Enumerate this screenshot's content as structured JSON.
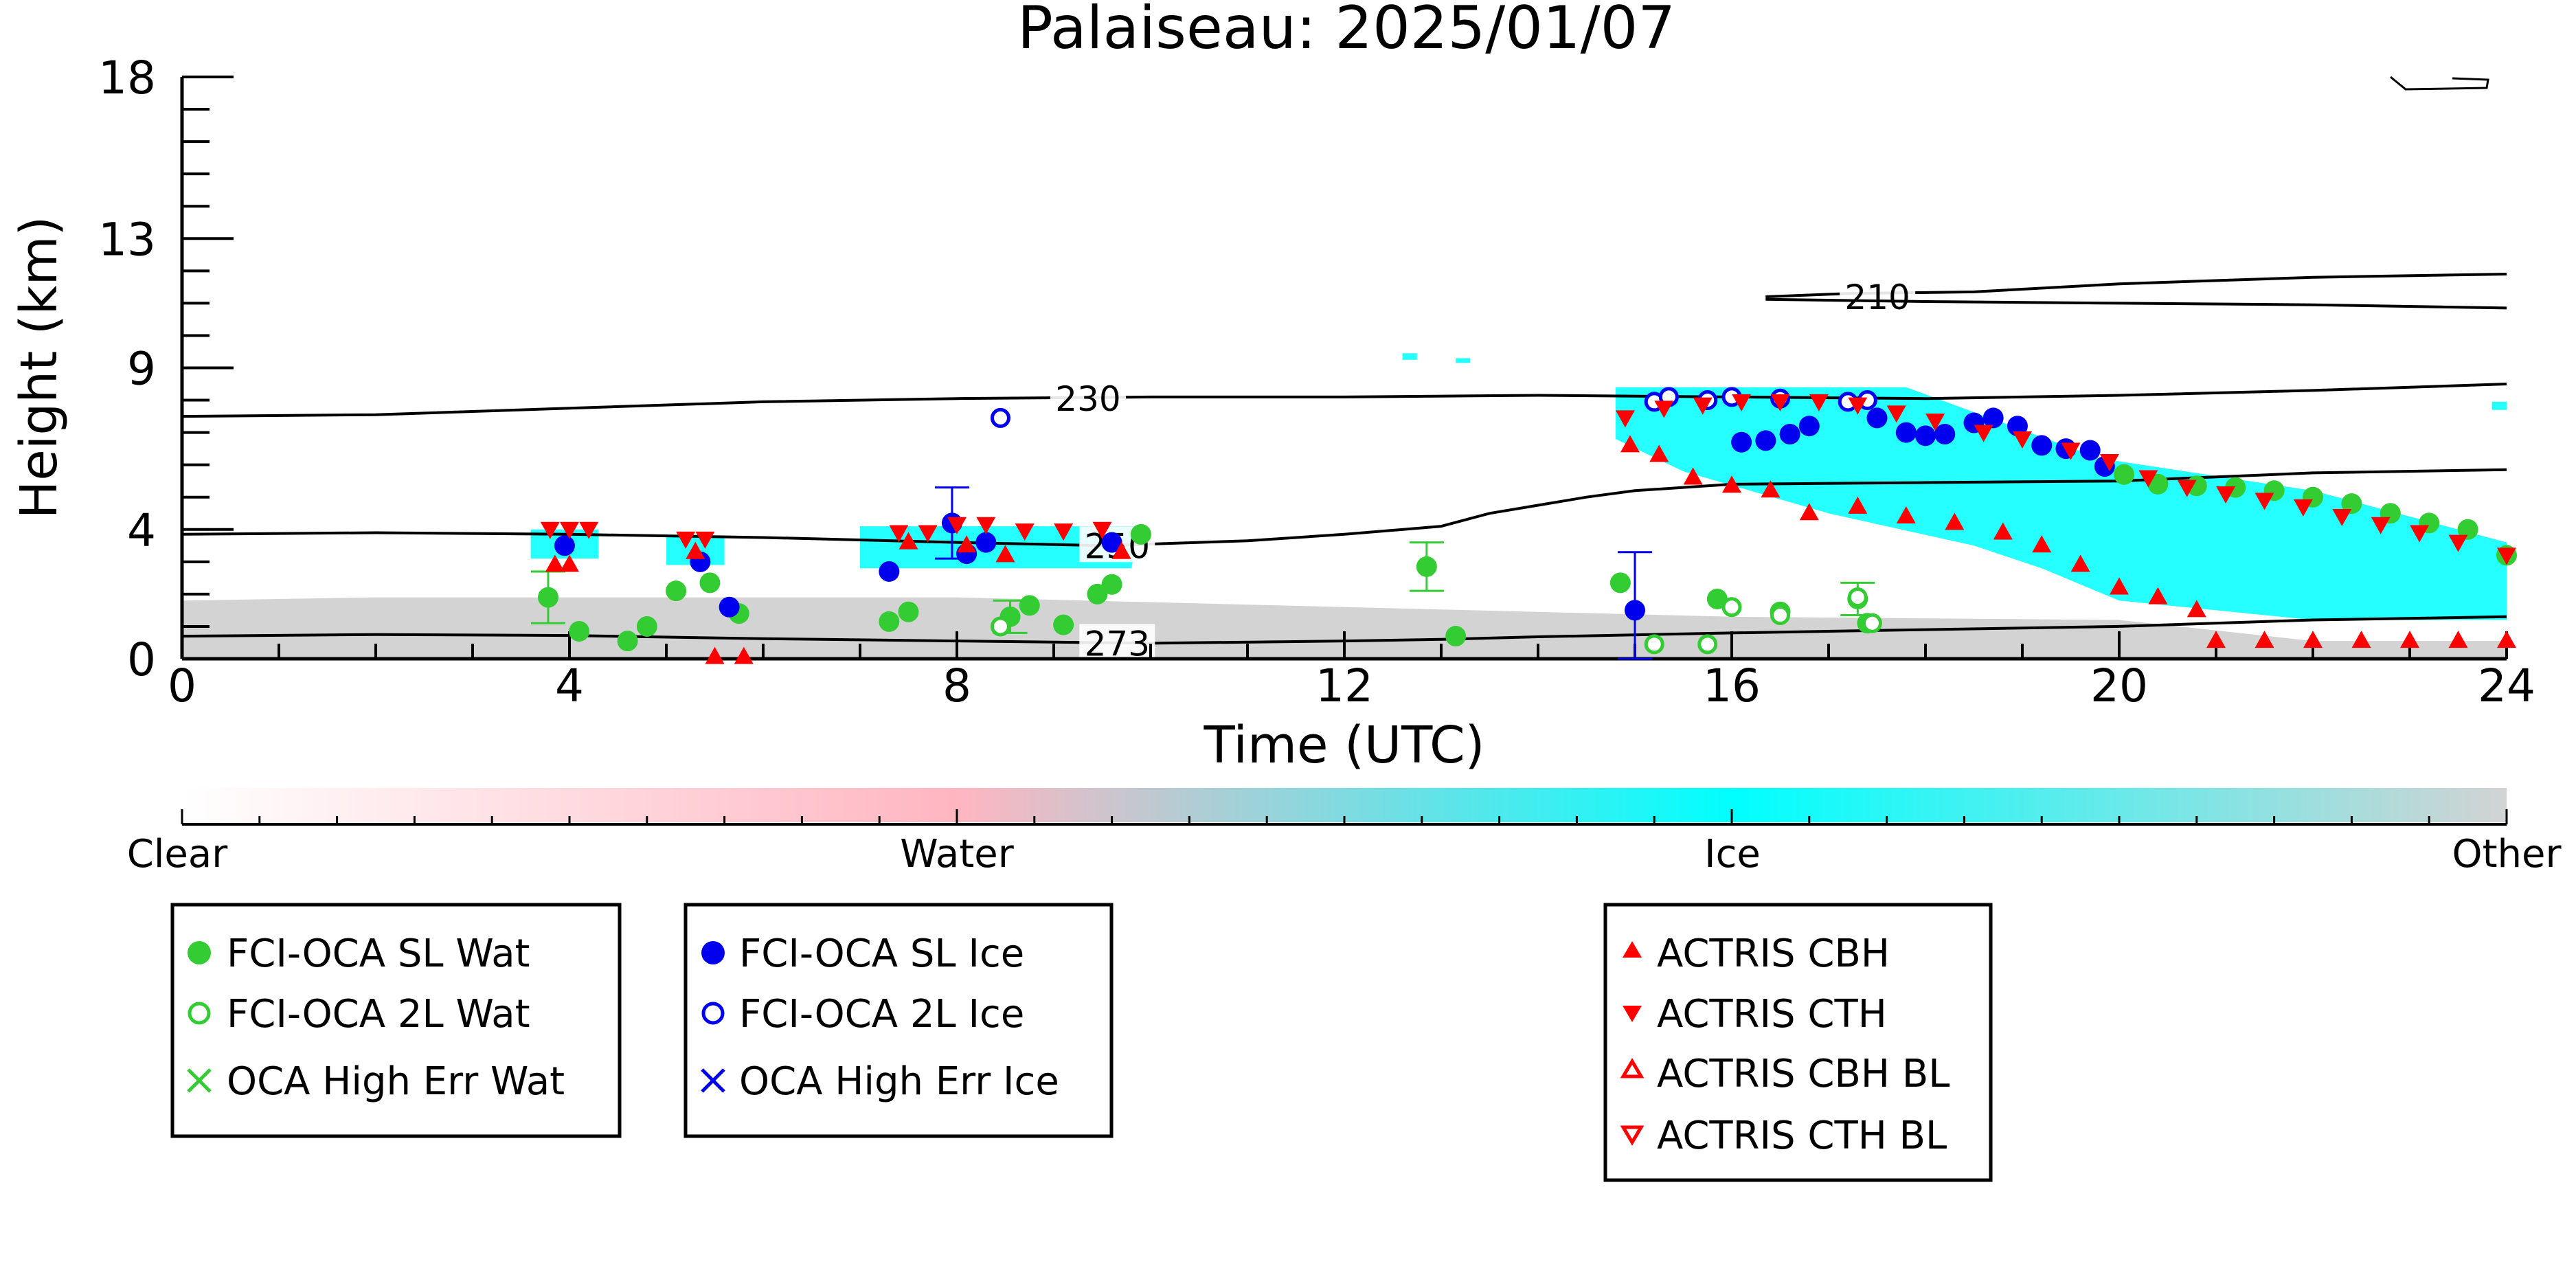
{
  "chart_data": {
    "type": "scatter",
    "title": "Palaiseau: 2025/01/07",
    "xlabel": "Time (UTC)",
    "ylabel": "Height (km)",
    "xlim": [
      0,
      24
    ],
    "ylim": [
      0,
      18
    ],
    "x_ticks": [
      0,
      4,
      8,
      12,
      16,
      20,
      24
    ],
    "y_ticks": [
      0,
      4,
      9,
      13,
      18
    ],
    "grid": false,
    "colorbar": {
      "labels": [
        "Clear",
        "Water",
        "Ice",
        "Other"
      ],
      "colors": [
        "#ffffff",
        "#ffb6c1",
        "#00ffff",
        "#d3d3d3"
      ]
    },
    "contours": [
      {
        "label": "210",
        "points": [
          [
            16.35,
            11.2
          ],
          [
            17.2,
            11.3
          ],
          [
            18.5,
            11.35
          ],
          [
            20.0,
            11.6
          ],
          [
            22.0,
            11.8
          ],
          [
            24.0,
            11.9
          ]
        ]
      },
      {
        "label": "",
        "points": [
          [
            16.35,
            11.12
          ],
          [
            18.0,
            11.05
          ],
          [
            20.0,
            11.0
          ],
          [
            22.0,
            10.95
          ],
          [
            24.0,
            10.85
          ]
        ]
      },
      {
        "label": "230",
        "points": [
          [
            0,
            7.5
          ],
          [
            2,
            7.55
          ],
          [
            4,
            7.75
          ],
          [
            6,
            7.95
          ],
          [
            8,
            8.05
          ],
          [
            10,
            8.1
          ],
          [
            12,
            8.1
          ],
          [
            14,
            8.15
          ],
          [
            16,
            8.1
          ],
          [
            18,
            8.05
          ],
          [
            20,
            8.15
          ],
          [
            22,
            8.3
          ],
          [
            24,
            8.5
          ]
        ]
      },
      {
        "label": "250",
        "points": [
          [
            0,
            3.85
          ],
          [
            2,
            3.9
          ],
          [
            4,
            3.85
          ],
          [
            6,
            3.75
          ],
          [
            8,
            3.6
          ],
          [
            9.5,
            3.5
          ],
          [
            10,
            3.55
          ],
          [
            11,
            3.65
          ],
          [
            12,
            3.85
          ],
          [
            13,
            4.1
          ],
          [
            13.5,
            4.5
          ],
          [
            14,
            4.75
          ],
          [
            14.5,
            5.0
          ],
          [
            15,
            5.2
          ],
          [
            16,
            5.4
          ],
          [
            18,
            5.45
          ],
          [
            20,
            5.5
          ],
          [
            22,
            5.75
          ],
          [
            24,
            5.85
          ]
        ]
      },
      {
        "label": "273",
        "points": [
          [
            0,
            0.7
          ],
          [
            2,
            0.75
          ],
          [
            4,
            0.72
          ],
          [
            6,
            0.62
          ],
          [
            8,
            0.55
          ],
          [
            10,
            0.48
          ],
          [
            12,
            0.55
          ],
          [
            13,
            0.6
          ],
          [
            14,
            0.68
          ],
          [
            16,
            0.8
          ],
          [
            18,
            0.9
          ],
          [
            20,
            1.0
          ],
          [
            22,
            1.2
          ],
          [
            24,
            1.3
          ]
        ]
      }
    ],
    "series": [
      {
        "name": "FCI-OCA SL Wat",
        "color": "#33cc33",
        "marker": "circle-filled",
        "points": [
          [
            3.78,
            1.9,
            0.8
          ],
          [
            4.1,
            0.85,
            0
          ],
          [
            4.6,
            0.55,
            0
          ],
          [
            4.8,
            1.0,
            0
          ],
          [
            5.1,
            2.1,
            0
          ],
          [
            5.45,
            2.35,
            0
          ],
          [
            5.75,
            1.4,
            0
          ],
          [
            7.3,
            1.15,
            0
          ],
          [
            7.5,
            1.45,
            0
          ],
          [
            8.55,
            1.3,
            0.5
          ],
          [
            8.75,
            1.65,
            0
          ],
          [
            9.1,
            1.05,
            0
          ],
          [
            9.45,
            2.0,
            0
          ],
          [
            9.6,
            2.3,
            0
          ],
          [
            9.9,
            3.85,
            0
          ],
          [
            12.85,
            2.85,
            0.75
          ],
          [
            13.15,
            0.7,
            0
          ],
          [
            14.85,
            2.35,
            0
          ],
          [
            15.85,
            1.85,
            0
          ],
          [
            16.5,
            1.45,
            0
          ],
          [
            17.3,
            1.85,
            0.5
          ],
          [
            17.4,
            1.1,
            0
          ],
          [
            20.05,
            5.7,
            0
          ],
          [
            20.4,
            5.4,
            0
          ],
          [
            20.8,
            5.35,
            0
          ],
          [
            21.2,
            5.3,
            0
          ],
          [
            21.6,
            5.2,
            0
          ],
          [
            22.0,
            5.0,
            0
          ],
          [
            22.4,
            4.8,
            0
          ],
          [
            22.8,
            4.5,
            0
          ],
          [
            23.2,
            4.2,
            0
          ],
          [
            23.6,
            4.0,
            0
          ],
          [
            24.0,
            3.2,
            0
          ]
        ]
      },
      {
        "name": "FCI-OCA 2L Wat",
        "color": "#33cc33",
        "marker": "circle-open",
        "points": [
          [
            8.45,
            1.0
          ],
          [
            15.2,
            0.45
          ],
          [
            15.75,
            0.45
          ],
          [
            16.0,
            1.6
          ],
          [
            16.5,
            1.35
          ],
          [
            17.3,
            1.9
          ],
          [
            17.45,
            1.1
          ]
        ]
      },
      {
        "name": "OCA High Err Wat",
        "color": "#33cc33",
        "marker": "x",
        "points": []
      },
      {
        "name": "FCI-OCA SL Ice",
        "color": "#0000ee",
        "marker": "circle-filled",
        "points": [
          [
            3.95,
            3.5,
            0
          ],
          [
            5.35,
            3.0,
            0
          ],
          [
            5.65,
            1.6,
            0
          ],
          [
            7.3,
            2.7,
            0
          ],
          [
            7.95,
            4.2,
            1.1
          ],
          [
            8.1,
            3.25,
            0
          ],
          [
            8.3,
            3.6,
            0
          ],
          [
            9.6,
            3.6,
            0
          ],
          [
            15.0,
            1.5,
            1.8
          ],
          [
            16.1,
            6.7,
            0
          ],
          [
            16.35,
            6.75,
            0
          ],
          [
            16.6,
            6.95,
            0
          ],
          [
            16.8,
            7.2,
            0
          ],
          [
            17.5,
            7.45,
            0
          ],
          [
            17.8,
            7.0,
            0
          ],
          [
            18.0,
            6.9,
            0
          ],
          [
            18.2,
            6.95,
            0
          ],
          [
            18.5,
            7.3,
            0
          ],
          [
            18.7,
            7.45,
            0
          ],
          [
            18.95,
            7.2,
            0
          ],
          [
            19.2,
            6.6,
            0
          ],
          [
            19.45,
            6.5,
            0
          ],
          [
            19.7,
            6.45,
            0
          ],
          [
            19.85,
            5.95,
            0
          ]
        ]
      },
      {
        "name": "FCI-OCA 2L Ice",
        "color": "#0000ee",
        "marker": "circle-open",
        "points": [
          [
            8.45,
            7.45
          ],
          [
            15.2,
            7.95
          ],
          [
            15.35,
            8.1
          ],
          [
            15.75,
            8.0
          ],
          [
            16.0,
            8.1
          ],
          [
            16.5,
            8.05
          ],
          [
            17.2,
            7.95
          ],
          [
            17.4,
            8.0
          ]
        ]
      },
      {
        "name": "OCA High Err Ice",
        "color": "#0000ee",
        "marker": "x",
        "points": []
      },
      {
        "name": "ACTRIS CBH",
        "color": "#ff0000",
        "marker": "triangle-up",
        "points": [
          [
            3.85,
            2.9
          ],
          [
            4.0,
            2.9
          ],
          [
            5.3,
            3.3
          ],
          [
            7.5,
            3.6
          ],
          [
            8.1,
            3.5
          ],
          [
            8.5,
            3.2
          ],
          [
            9.7,
            3.3
          ],
          [
            14.95,
            6.6
          ],
          [
            15.25,
            6.3
          ],
          [
            15.6,
            5.6
          ],
          [
            16.0,
            5.35
          ],
          [
            16.4,
            5.2
          ],
          [
            16.8,
            4.5
          ],
          [
            17.3,
            4.7
          ],
          [
            17.8,
            4.4
          ],
          [
            18.3,
            4.2
          ],
          [
            18.8,
            3.9
          ],
          [
            19.2,
            3.5
          ],
          [
            19.6,
            2.9
          ],
          [
            20.0,
            2.2
          ],
          [
            20.4,
            1.9
          ],
          [
            20.8,
            1.5
          ],
          [
            21.0,
            0.55
          ],
          [
            21.5,
            0.55
          ],
          [
            22.0,
            0.55
          ],
          [
            22.5,
            0.55
          ],
          [
            23.0,
            0.55
          ],
          [
            23.5,
            0.55
          ],
          [
            24.0,
            0.55
          ],
          [
            5.5,
            0.05
          ],
          [
            5.8,
            0.05
          ]
        ]
      },
      {
        "name": "ACTRIS CTH",
        "color": "#ff0000",
        "marker": "triangle-down",
        "points": [
          [
            3.8,
            4.0
          ],
          [
            4.0,
            4.0
          ],
          [
            4.2,
            4.0
          ],
          [
            5.2,
            3.7
          ],
          [
            5.4,
            3.7
          ],
          [
            7.4,
            3.9
          ],
          [
            7.7,
            3.9
          ],
          [
            8.0,
            4.15
          ],
          [
            8.3,
            4.15
          ],
          [
            8.7,
            3.95
          ],
          [
            9.1,
            3.95
          ],
          [
            9.5,
            4.0
          ],
          [
            14.9,
            7.45
          ],
          [
            15.3,
            7.75
          ],
          [
            15.7,
            7.85
          ],
          [
            16.1,
            7.95
          ],
          [
            16.5,
            7.95
          ],
          [
            16.9,
            7.95
          ],
          [
            17.3,
            7.85
          ],
          [
            17.7,
            7.6
          ],
          [
            18.1,
            7.35
          ],
          [
            18.6,
            7.0
          ],
          [
            19.0,
            6.8
          ],
          [
            19.5,
            6.45
          ],
          [
            19.9,
            6.1
          ],
          [
            20.3,
            5.6
          ],
          [
            20.7,
            5.3
          ],
          [
            21.1,
            5.1
          ],
          [
            21.5,
            4.9
          ],
          [
            21.9,
            4.7
          ],
          [
            22.3,
            4.4
          ],
          [
            22.7,
            4.15
          ],
          [
            23.1,
            3.9
          ],
          [
            23.5,
            3.6
          ],
          [
            24.0,
            3.2
          ]
        ]
      },
      {
        "name": "ACTRIS CBH BL",
        "color": "#ff0000",
        "marker": "triangle-up-open",
        "points": []
      },
      {
        "name": "ACTRIS CTH BL",
        "color": "#ff0000",
        "marker": "triangle-down-open",
        "points": []
      }
    ],
    "cloud_regions": [
      {
        "phase": "Other",
        "color": "#d3d3d3",
        "polygon": [
          [
            0,
            0
          ],
          [
            24,
            0
          ],
          [
            24,
            0.55
          ],
          [
            22,
            0.55
          ],
          [
            20,
            1.2
          ],
          [
            16,
            1.3
          ],
          [
            12,
            1.6
          ],
          [
            8,
            1.9
          ],
          [
            6,
            1.9
          ],
          [
            4,
            1.9
          ],
          [
            2,
            1.9
          ],
          [
            0,
            1.8
          ]
        ]
      },
      {
        "phase": "Ice",
        "color": "#00ffff",
        "polygon": [
          [
            3.6,
            3.1
          ],
          [
            4.3,
            3.1
          ],
          [
            4.3,
            4.0
          ],
          [
            3.6,
            4.0
          ]
        ]
      },
      {
        "phase": "Ice",
        "color": "#00ffff",
        "polygon": [
          [
            5.0,
            2.9
          ],
          [
            5.6,
            2.9
          ],
          [
            5.6,
            3.8
          ],
          [
            5.0,
            3.8
          ]
        ]
      },
      {
        "phase": "Ice",
        "color": "#00ffff",
        "polygon": [
          [
            7.0,
            2.8
          ],
          [
            9.8,
            2.8
          ],
          [
            9.9,
            4.1
          ],
          [
            7.0,
            4.1
          ]
        ]
      },
      {
        "phase": "Ice",
        "color": "#00ffff",
        "polygon": [
          [
            14.8,
            8.4
          ],
          [
            17.8,
            8.4
          ],
          [
            19.8,
            6.2
          ],
          [
            22.0,
            5.2
          ],
          [
            24.0,
            3.6
          ],
          [
            24.0,
            1.2
          ],
          [
            22.0,
            1.2
          ],
          [
            20.0,
            1.8
          ],
          [
            19.2,
            2.8
          ],
          [
            18.5,
            3.5
          ],
          [
            17.0,
            4.5
          ],
          [
            15.5,
            5.8
          ],
          [
            14.8,
            6.8
          ]
        ]
      },
      {
        "phase": "Ice",
        "color": "#00ffff",
        "polygon": [
          [
            12.6,
            9.25
          ],
          [
            12.75,
            9.25
          ],
          [
            12.75,
            9.45
          ],
          [
            12.6,
            9.45
          ]
        ]
      },
      {
        "phase": "Ice",
        "color": "#00ffff",
        "polygon": [
          [
            13.15,
            9.15
          ],
          [
            13.3,
            9.15
          ],
          [
            13.3,
            9.3
          ],
          [
            13.15,
            9.3
          ]
        ]
      },
      {
        "phase": "Ice",
        "color": "#00ffff",
        "polygon": [
          [
            23.85,
            7.7
          ],
          [
            24.0,
            7.7
          ],
          [
            24.0,
            7.95
          ],
          [
            23.85,
            7.95
          ]
        ]
      }
    ]
  }
}
